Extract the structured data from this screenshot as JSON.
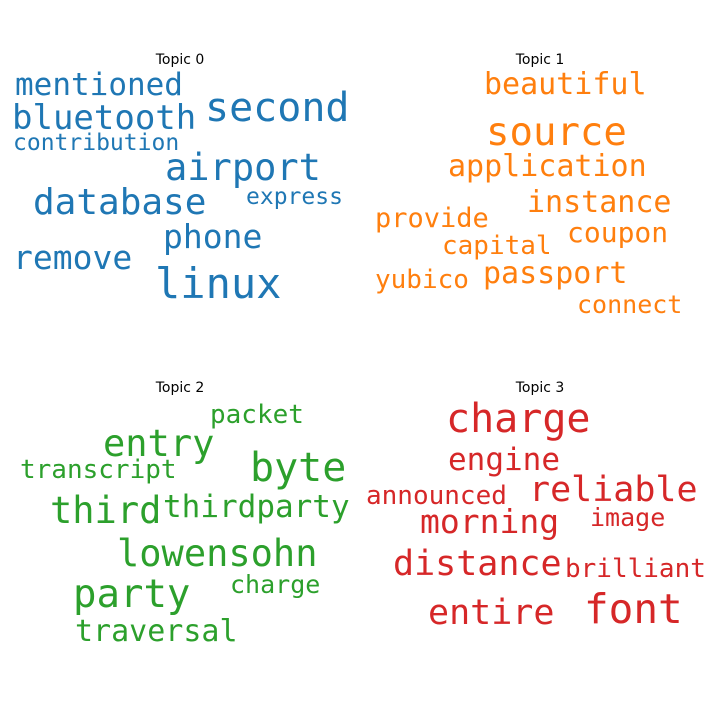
{
  "chart_data": [
    {
      "type": "wordcloud",
      "title": "Topic 0",
      "color": "#1f77b4",
      "words": [
        "second",
        "airport",
        "linux",
        "database",
        "bluetooth",
        "mentioned",
        "phone",
        "remove",
        "contribution",
        "express"
      ]
    },
    {
      "type": "wordcloud",
      "title": "Topic 1",
      "color": "#ff7f0e",
      "words": [
        "source",
        "beautiful",
        "application",
        "instance",
        "provide",
        "coupon",
        "capital",
        "passport",
        "yubico",
        "connect"
      ]
    },
    {
      "type": "wordcloud",
      "title": "Topic 2",
      "color": "#2ca02c",
      "words": [
        "entry",
        "byte",
        "packet",
        "transcript",
        "third",
        "thirdparty",
        "lowensohn",
        "party",
        "charge",
        "traversal"
      ]
    },
    {
      "type": "wordcloud",
      "title": "Topic 3",
      "color": "#d62728",
      "words": [
        "charge",
        "engine",
        "reliable",
        "announced",
        "morning",
        "image",
        "distance",
        "brilliant",
        "font",
        "entire"
      ]
    }
  ]
}
